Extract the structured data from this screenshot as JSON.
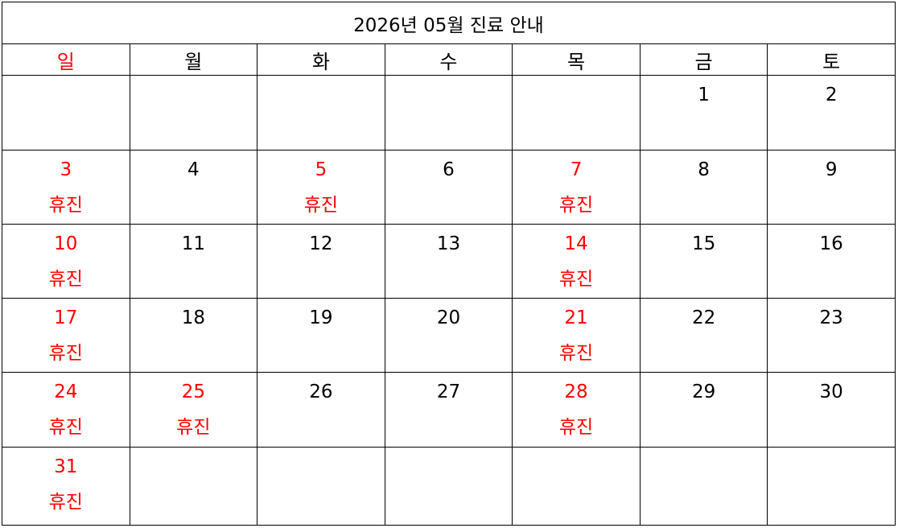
{
  "title": "2026년 05월 진료 안내",
  "red_color": "#ff0000",
  "weekdays": [
    {
      "label": "일",
      "red": true
    },
    {
      "label": "월",
      "red": false
    },
    {
      "label": "화",
      "red": false
    },
    {
      "label": "수",
      "red": false
    },
    {
      "label": "목",
      "red": false
    },
    {
      "label": "금",
      "red": false
    },
    {
      "label": "토",
      "red": false
    }
  ],
  "weeks": [
    [
      {
        "day": ""
      },
      {
        "day": ""
      },
      {
        "day": ""
      },
      {
        "day": ""
      },
      {
        "day": ""
      },
      {
        "day": "1"
      },
      {
        "day": "2"
      }
    ],
    [
      {
        "day": "3",
        "red": true,
        "note": "휴진"
      },
      {
        "day": "4"
      },
      {
        "day": "5",
        "red": true,
        "note": "휴진"
      },
      {
        "day": "6"
      },
      {
        "day": "7",
        "red": true,
        "note": "휴진"
      },
      {
        "day": "8"
      },
      {
        "day": "9"
      }
    ],
    [
      {
        "day": "10",
        "red": true,
        "note": "휴진"
      },
      {
        "day": "11"
      },
      {
        "day": "12"
      },
      {
        "day": "13"
      },
      {
        "day": "14",
        "red": true,
        "note": "휴진"
      },
      {
        "day": "15"
      },
      {
        "day": "16"
      }
    ],
    [
      {
        "day": "17",
        "red": true,
        "note": "휴진"
      },
      {
        "day": "18"
      },
      {
        "day": "19"
      },
      {
        "day": "20"
      },
      {
        "day": "21",
        "red": true,
        "note": "휴진"
      },
      {
        "day": "22"
      },
      {
        "day": "23"
      }
    ],
    [
      {
        "day": "24",
        "red": true,
        "note": "휴진"
      },
      {
        "day": "25",
        "red": true,
        "note": "휴진"
      },
      {
        "day": "26"
      },
      {
        "day": "27"
      },
      {
        "day": "28",
        "red": true,
        "note": "휴진"
      },
      {
        "day": "29"
      },
      {
        "day": "30"
      }
    ],
    [
      {
        "day": "31",
        "red": true,
        "note": "휴진"
      },
      {
        "day": ""
      },
      {
        "day": ""
      },
      {
        "day": ""
      },
      {
        "day": ""
      },
      {
        "day": ""
      },
      {
        "day": ""
      }
    ]
  ]
}
